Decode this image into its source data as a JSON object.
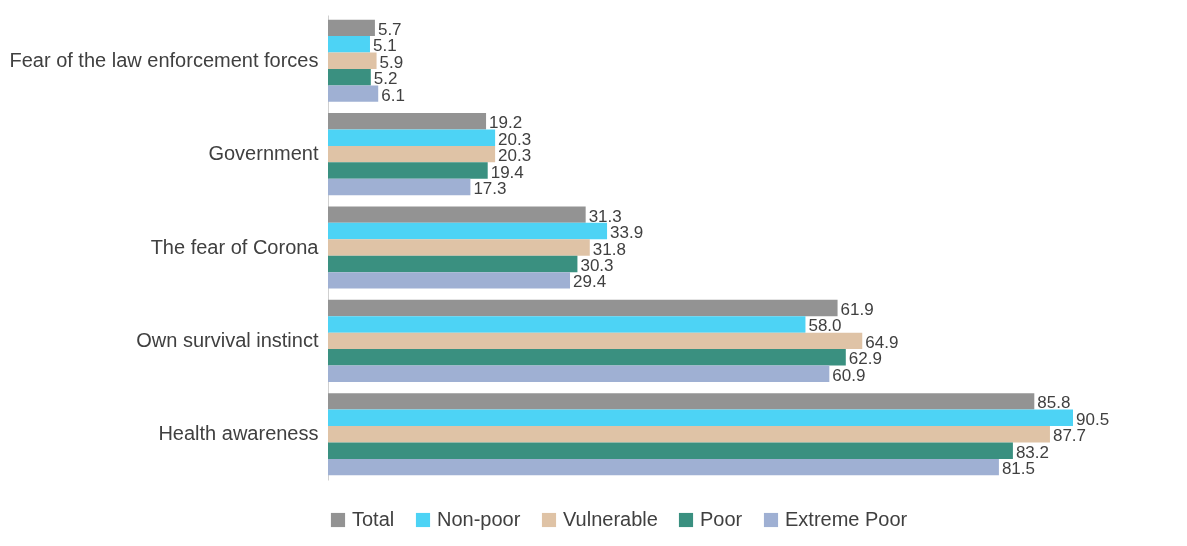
{
  "chart_data": {
    "type": "bar",
    "orientation": "horizontal",
    "categories": [
      "Fear of the law enforcement forces",
      "Government",
      "The fear of Corona",
      "Own survival instinct",
      "Health awareness"
    ],
    "series": [
      {
        "name": "Total",
        "color": "#939393",
        "values": [
          5.7,
          19.2,
          31.3,
          61.9,
          85.8
        ],
        "value_labels": [
          "5.7",
          "19.2",
          "31.3",
          "61.9",
          "85.8"
        ]
      },
      {
        "name": "Non-poor",
        "color": "#4dd3f5",
        "values": [
          5.1,
          20.3,
          33.9,
          58.0,
          90.5
        ],
        "value_labels": [
          "5.1",
          "20.3",
          "33.9",
          "58.0",
          "90.5"
        ]
      },
      {
        "name": "Vulnerable",
        "color": "#dfc3a6",
        "values": [
          5.9,
          20.3,
          31.8,
          64.9,
          87.7
        ],
        "value_labels": [
          "5.9",
          "20.3",
          "31.8",
          "64.9",
          "87.7"
        ]
      },
      {
        "name": "Poor",
        "color": "#3a9080",
        "values": [
          5.2,
          19.4,
          30.3,
          62.9,
          83.2
        ],
        "value_labels": [
          "5.2",
          "19.4",
          "30.3",
          "62.9",
          "83.2"
        ]
      },
      {
        "name": "Extreme Poor",
        "color": "#9fb0d3",
        "values": [
          6.1,
          17.3,
          29.4,
          60.9,
          81.5
        ],
        "value_labels": [
          "6.1",
          "17.3",
          "29.4",
          "60.9",
          "81.5"
        ]
      }
    ],
    "legend": "bottom"
  }
}
